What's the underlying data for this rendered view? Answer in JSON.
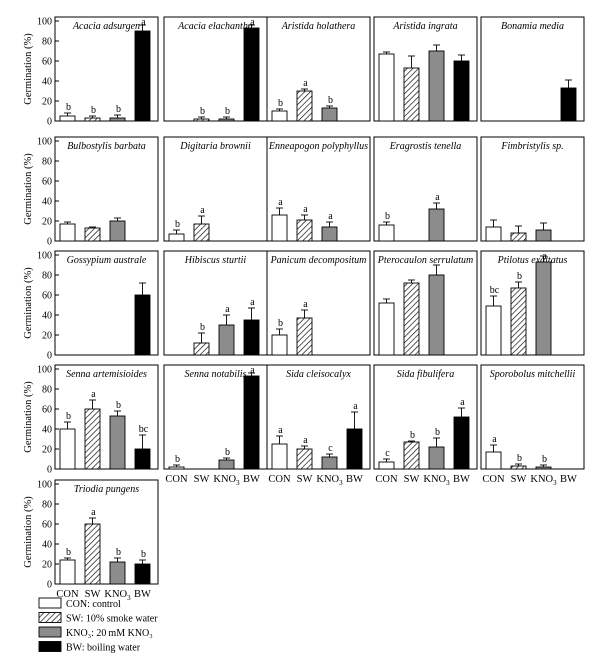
{
  "chart_data": {
    "type": "bar",
    "ylabel": "Germination (%)",
    "ylim": [
      0,
      100
    ],
    "yticks": [
      0,
      20,
      40,
      60,
      80,
      100
    ],
    "categories": [
      "CON",
      "SW",
      "KNO3",
      "BW"
    ],
    "treatments": {
      "CON": {
        "fill": "#ffffff",
        "pattern": "none"
      },
      "SW": {
        "fill": "#ffffff",
        "pattern": "hatch"
      },
      "KNO3": {
        "fill": "#8c8c8c",
        "pattern": "none"
      },
      "BW": {
        "fill": "#000000",
        "pattern": "none"
      }
    },
    "legend": [
      {
        "key": "CON",
        "label": "CON: control"
      },
      {
        "key": "SW",
        "label": "SW: 10% smoke water"
      },
      {
        "key": "KNO3",
        "label": "KNO₃: 20 mM KNO₃"
      },
      {
        "key": "BW",
        "label": "BW: boiling water"
      }
    ],
    "panels": [
      {
        "title": "Acacia adsurgen",
        "values": [
          5,
          3,
          3,
          90
        ],
        "errors": [
          3,
          2,
          3,
          6
        ],
        "letters": [
          "b",
          "b",
          "b",
          "a"
        ]
      },
      {
        "title": "Acacia elachantha",
        "values": [
          null,
          2,
          2,
          93
        ],
        "errors": [
          0,
          2,
          2,
          3
        ],
        "letters": [
          "",
          "b",
          "b",
          "a"
        ]
      },
      {
        "title": "Aristida holathera",
        "values": [
          10,
          30,
          13,
          null
        ],
        "errors": [
          2,
          2,
          2,
          0
        ],
        "letters": [
          "b",
          "a",
          "b",
          ""
        ]
      },
      {
        "title": "Aristida ingrata",
        "values": [
          67,
          53,
          70,
          60
        ],
        "errors": [
          2,
          12,
          6,
          6
        ],
        "letters": [
          "",
          "",
          "",
          ""
        ]
      },
      {
        "title": "Bonamia media",
        "values": [
          null,
          null,
          null,
          33
        ],
        "errors": [
          0,
          0,
          0,
          8
        ],
        "letters": [
          "",
          "",
          "",
          ""
        ]
      },
      {
        "title": "Bulbostylis barbata",
        "values": [
          17,
          13,
          20,
          null
        ],
        "errors": [
          2,
          1,
          3,
          0
        ],
        "letters": [
          "",
          "",
          "",
          ""
        ]
      },
      {
        "title": "Digitaria brownii",
        "values": [
          7,
          17,
          null,
          null
        ],
        "errors": [
          4,
          8,
          0,
          0
        ],
        "letters": [
          "b",
          "a",
          "",
          ""
        ]
      },
      {
        "title": "Enneapogon polyphyllus",
        "values": [
          26,
          21,
          14,
          null
        ],
        "errors": [
          7,
          5,
          5,
          0
        ],
        "letters": [
          "a",
          "a",
          "a",
          ""
        ]
      },
      {
        "title": "Eragrostis tenella",
        "values": [
          16,
          null,
          32,
          null
        ],
        "errors": [
          3,
          0,
          6,
          0
        ],
        "letters": [
          "b",
          "",
          "a",
          ""
        ]
      },
      {
        "title": "Fimbristylis sp.",
        "values": [
          14,
          8,
          11,
          null
        ],
        "errors": [
          7,
          7,
          7,
          0
        ],
        "letters": [
          "",
          "",
          "",
          ""
        ]
      },
      {
        "title": "Gossypium australe",
        "values": [
          null,
          null,
          null,
          60
        ],
        "errors": [
          0,
          0,
          0,
          12
        ],
        "letters": [
          "",
          "",
          "",
          ""
        ]
      },
      {
        "title": "Hibiscus sturtii",
        "values": [
          null,
          12,
          30,
          35
        ],
        "errors": [
          0,
          10,
          10,
          12
        ],
        "letters": [
          "",
          "b",
          "a",
          "a"
        ]
      },
      {
        "title": "Panicum decompositum",
        "values": [
          20,
          37,
          null,
          null
        ],
        "errors": [
          6,
          8,
          0,
          0
        ],
        "letters": [
          "b",
          "a",
          "",
          ""
        ]
      },
      {
        "title": "Pterocaulon serrulatum",
        "values": [
          52,
          72,
          80,
          null
        ],
        "errors": [
          4,
          3,
          10,
          0
        ],
        "letters": [
          "",
          "",
          "",
          ""
        ]
      },
      {
        "title": "Ptilotus exaltatus",
        "values": [
          49,
          67,
          93,
          null
        ],
        "errors": [
          10,
          6,
          6,
          0
        ],
        "letters": [
          "bc",
          "b",
          "a",
          ""
        ]
      },
      {
        "title": "Senna artemisioides",
        "values": [
          40,
          60,
          53,
          20
        ],
        "errors": [
          7,
          9,
          5,
          14
        ],
        "letters": [
          "b",
          "a",
          "b",
          "bc"
        ]
      },
      {
        "title": "Senna notabilis",
        "values": [
          2,
          null,
          9,
          93
        ],
        "errors": [
          2,
          0,
          2,
          3
        ],
        "letters": [
          "b",
          "",
          "b",
          "a"
        ]
      },
      {
        "title": "Sida cleisocalyx",
        "values": [
          25,
          20,
          12,
          40
        ],
        "errors": [
          8,
          3,
          3,
          17
        ],
        "letters": [
          "a",
          "a",
          "c",
          "a"
        ]
      },
      {
        "title": "Sida fibulifera",
        "values": [
          7,
          27,
          22,
          52
        ],
        "errors": [
          3,
          1,
          9,
          9
        ],
        "letters": [
          "c",
          "b",
          "b",
          "a"
        ]
      },
      {
        "title": "Sporobolus mitchellii",
        "values": [
          17,
          3,
          2,
          null
        ],
        "errors": [
          7,
          2,
          2,
          0
        ],
        "letters": [
          "a",
          "b",
          "b",
          ""
        ]
      },
      {
        "title": "Triodia pungens",
        "values": [
          24,
          60,
          22,
          20
        ],
        "errors": [
          2,
          6,
          4,
          4
        ],
        "letters": [
          "b",
          "a",
          "b",
          "b"
        ]
      }
    ]
  }
}
